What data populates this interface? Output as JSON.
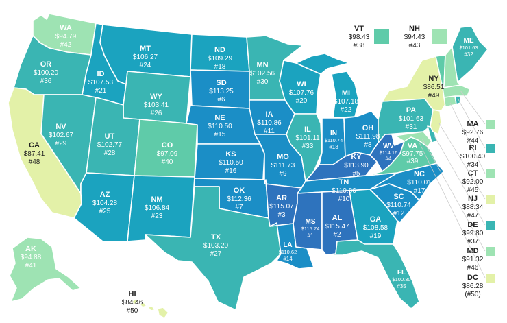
{
  "palette": {
    "c1": "#e3f1a8",
    "c2": "#9ee3b3",
    "c3": "#5fcba9",
    "c4": "#3ab5b3",
    "c5": "#1ba3bf",
    "c6": "#1b8ec6",
    "c7": "#2e73bd"
  },
  "states": {
    "WA": {
      "ab": "WA",
      "price": "$94.79",
      "rank": "#42",
      "color": "#9ee3b3"
    },
    "OR": {
      "ab": "OR",
      "price": "$100.20",
      "rank": "#36",
      "color": "#3ab5b3"
    },
    "CA": {
      "ab": "CA",
      "price": "$87.41",
      "rank": "#48",
      "color": "#e3f1a8"
    },
    "NV": {
      "ab": "NV",
      "price": "$102.67",
      "rank": "#29",
      "color": "#3ab5b3"
    },
    "ID": {
      "ab": "ID",
      "price": "$107.53",
      "rank": "#21",
      "color": "#1ba3bf"
    },
    "MT": {
      "ab": "MT",
      "price": "$106.27",
      "rank": "#24",
      "color": "#1ba3bf"
    },
    "WY": {
      "ab": "WY",
      "price": "$103.41",
      "rank": "#26",
      "color": "#3ab5b3"
    },
    "UT": {
      "ab": "UT",
      "price": "$102.77",
      "rank": "#28",
      "color": "#3ab5b3"
    },
    "CO": {
      "ab": "CO",
      "price": "$97.09",
      "rank": "#40",
      "color": "#5fcba9"
    },
    "AZ": {
      "ab": "AZ",
      "price": "$104.28",
      "rank": "#25",
      "color": "#1ba3bf"
    },
    "NM": {
      "ab": "NM",
      "price": "$106.84",
      "rank": "#23",
      "color": "#1ba3bf"
    },
    "ND": {
      "ab": "ND",
      "price": "$109.29",
      "rank": "#18",
      "color": "#1ba3bf"
    },
    "SD": {
      "ab": "SD",
      "price": "$113.25",
      "rank": "#6",
      "color": "#1b8ec6"
    },
    "NE": {
      "ab": "NE",
      "price": "$110.50",
      "rank": "#15",
      "color": "#1b8ec6"
    },
    "KS": {
      "ab": "KS",
      "price": "$110.50",
      "rank": "#16",
      "color": "#1b8ec6"
    },
    "OK": {
      "ab": "OK",
      "price": "$112.36",
      "rank": "#7",
      "color": "#1b8ec6"
    },
    "TX": {
      "ab": "TX",
      "price": "$103.20",
      "rank": "#27",
      "color": "#3ab5b3"
    },
    "MN": {
      "ab": "MN",
      "price": "$102.56",
      "rank": "#30",
      "color": "#3ab5b3"
    },
    "IA": {
      "ab": "IA",
      "price": "$110.86",
      "rank": "#11",
      "color": "#1b8ec6"
    },
    "MO": {
      "ab": "MO",
      "price": "$111.73",
      "rank": "#9",
      "color": "#1b8ec6"
    },
    "AR": {
      "ab": "AR",
      "price": "$115.07",
      "rank": "#3",
      "color": "#2e73bd"
    },
    "LA": {
      "ab": "LA",
      "price": "$110.62",
      "rank": "#14",
      "color": "#1b8ec6"
    },
    "WI": {
      "ab": "WI",
      "price": "$107.76",
      "rank": "#20",
      "color": "#1ba3bf"
    },
    "IL": {
      "ab": "IL",
      "price": "$101.11",
      "rank": "#33",
      "color": "#3ab5b3"
    },
    "MI": {
      "ab": "MI",
      "price": "$107.18",
      "rank": "#22",
      "color": "#1ba3bf"
    },
    "IN": {
      "ab": "IN",
      "price": "$110.74",
      "rank": "#13",
      "color": "#1b8ec6"
    },
    "OH": {
      "ab": "OH",
      "price": "$111.98",
      "rank": "#8",
      "color": "#1b8ec6"
    },
    "KY": {
      "ab": "KY",
      "price": "$113.90",
      "rank": "#5",
      "color": "#2e73bd"
    },
    "TN": {
      "ab": "TN",
      "price": "$110.86",
      "rank": "#10",
      "color": "#1b8ec6"
    },
    "MS": {
      "ab": "MS",
      "price": "$115.74",
      "rank": "#1",
      "color": "#2e73bd"
    },
    "AL": {
      "ab": "AL",
      "price": "$115.47",
      "rank": "#2",
      "color": "#2e73bd"
    },
    "GA": {
      "ab": "GA",
      "price": "$108.58",
      "rank": "#19",
      "color": "#1ba3bf"
    },
    "FL": {
      "ab": "FL",
      "price": "$100.30",
      "rank": "#35",
      "color": "#3ab5b3"
    },
    "SC": {
      "ab": "SC",
      "price": "$110.74",
      "rank": "#12",
      "color": "#1b8ec6"
    },
    "NC": {
      "ab": "NC",
      "price": "$110.01",
      "rank": "#17",
      "color": "#1b8ec6"
    },
    "VA": {
      "ab": "VA",
      "price": "$97.75",
      "rank": "#39",
      "color": "#5fcba9"
    },
    "WV": {
      "ab": "WV",
      "price": "$114.16",
      "rank": "#4",
      "color": "#2e73bd"
    },
    "PA": {
      "ab": "PA",
      "price": "$101.63",
      "rank": "#31",
      "color": "#3ab5b3"
    },
    "NY": {
      "ab": "NY",
      "price": "$86.51",
      "rank": "#49",
      "color": "#e3f1a8"
    },
    "ME": {
      "ab": "ME",
      "price": "$101.63",
      "rank": "#32",
      "color": "#3ab5b3"
    },
    "AK": {
      "ab": "AK",
      "price": "$94.88",
      "rank": "#41",
      "color": "#9ee3b3"
    },
    "HI": {
      "ab": "HI",
      "price": "$84.46",
      "rank": "#50",
      "color": "#e3f1a8"
    },
    "VT": {
      "ab": "VT",
      "price": "$98.43",
      "rank": "#38",
      "color": "#5fcba9"
    },
    "NH": {
      "ab": "NH",
      "price": "$94.43",
      "rank": "#43",
      "color": "#9ee3b3"
    },
    "MA": {
      "ab": "MA",
      "price": "$92.76",
      "rank": "#44",
      "color": "#9ee3b3"
    },
    "RI": {
      "ab": "RI",
      "price": "$100.40",
      "rank": "#34",
      "color": "#3ab5b3"
    },
    "CT": {
      "ab": "CT",
      "price": "$92.00",
      "rank": "#45",
      "color": "#9ee3b3"
    },
    "NJ": {
      "ab": "NJ",
      "price": "$88.34",
      "rank": "#47",
      "color": "#e3f1a8"
    },
    "DE": {
      "ab": "DE",
      "price": "$99.80",
      "rank": "#37",
      "color": "#3ab5b3"
    },
    "MD": {
      "ab": "MD",
      "price": "$91.32",
      "rank": "#46",
      "color": "#9ee3b3"
    },
    "DC": {
      "ab": "DC",
      "price": "$86.28",
      "rank": "(#50)",
      "color": "#e3f1a8"
    }
  }
}
